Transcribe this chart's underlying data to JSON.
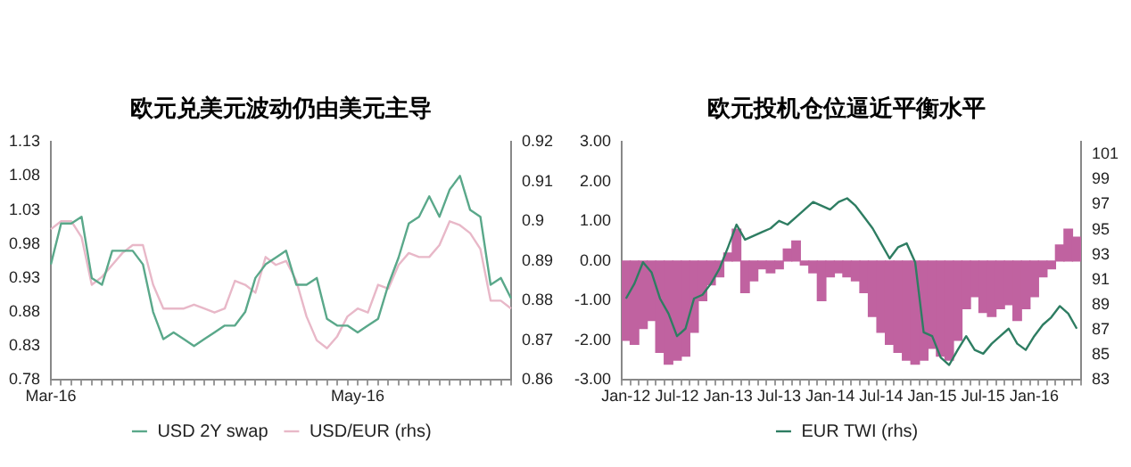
{
  "chart_data": [
    {
      "type": "line",
      "title": "欧元兑美元波动仍由美元主导",
      "categories": [
        "Mar-16",
        null,
        null,
        null,
        null,
        null,
        null,
        null,
        null,
        null,
        null,
        null,
        null,
        null,
        null,
        null,
        null,
        null,
        null,
        null,
        null,
        null,
        null,
        null,
        null,
        null,
        null,
        null,
        null,
        null,
        "May-16",
        null,
        null,
        null,
        null,
        null,
        null,
        null,
        null,
        null,
        null,
        null,
        null,
        null,
        null,
        null
      ],
      "series": [
        {
          "name": "USD 2Y swap",
          "color": "#5aa88a",
          "values": [
            0.95,
            1.01,
            1.01,
            1.02,
            0.93,
            0.92,
            0.97,
            0.97,
            0.97,
            0.95,
            0.88,
            0.84,
            0.85,
            0.84,
            0.83,
            0.84,
            0.85,
            0.86,
            0.86,
            0.88,
            0.93,
            0.95,
            0.96,
            0.97,
            0.92,
            0.92,
            0.93,
            0.87,
            0.86,
            0.86,
            0.85,
            0.86,
            0.87,
            0.92,
            0.96,
            1.01,
            1.02,
            1.05,
            1.02,
            1.06,
            1.08,
            1.03,
            1.02,
            0.92,
            0.93,
            0.9
          ]
        },
        {
          "name": "USD/EUR (rhs)",
          "color": "#e8b8c8",
          "axis": "y2",
          "values": [
            0.898,
            0.9,
            0.9,
            0.896,
            0.884,
            0.886,
            0.889,
            0.892,
            0.894,
            0.894,
            0.884,
            0.878,
            0.878,
            0.878,
            0.879,
            0.878,
            0.877,
            0.878,
            0.885,
            0.884,
            0.882,
            0.891,
            0.889,
            0.89,
            0.885,
            0.876,
            0.87,
            0.868,
            0.871,
            0.876,
            0.878,
            0.877,
            0.884,
            0.883,
            0.889,
            0.892,
            0.891,
            0.891,
            0.894,
            0.9,
            0.899,
            0.897,
            0.893,
            0.88,
            0.88,
            0.878
          ]
        }
      ],
      "ylim": [
        0.78,
        1.13
      ],
      "yticks": [
        0.78,
        0.83,
        0.88,
        0.93,
        0.98,
        1.03,
        1.08,
        1.13
      ],
      "y2lim": [
        0.86,
        0.92
      ],
      "y2ticks": [
        0.86,
        0.87,
        0.88,
        0.89,
        {
          "value": 0.9,
          "label": "0.9"
        },
        0.91,
        0.92
      ],
      "marker": "none",
      "legend": "bottom"
    },
    {
      "type": "bar",
      "title": "欧元投机仓位逼近平衡水平",
      "categories": [
        "Jan-12",
        null,
        null,
        null,
        null,
        null,
        "Jul-12",
        null,
        null,
        null,
        null,
        null,
        "Jan-13",
        null,
        null,
        null,
        null,
        null,
        "Jul-13",
        null,
        null,
        null,
        null,
        null,
        "Jan-14",
        null,
        null,
        null,
        null,
        null,
        "Jul-14",
        null,
        null,
        null,
        null,
        null,
        "Jan-15",
        null,
        null,
        null,
        null,
        null,
        "Jul-15",
        null,
        null,
        null,
        null,
        null,
        "Jan-16",
        null,
        null,
        null,
        null,
        null
      ],
      "series": [
        {
          "color": "#c062a0",
          "values": [
            -2.0,
            -2.1,
            -1.7,
            -1.5,
            -2.3,
            -2.6,
            -2.5,
            -2.4,
            -1.8,
            -1.0,
            -0.6,
            -0.4,
            0.2,
            0.8,
            -0.8,
            -0.5,
            -0.2,
            -0.3,
            -0.2,
            0.3,
            0.5,
            -0.1,
            -0.3,
            -1.0,
            -0.4,
            -0.3,
            -0.4,
            -0.5,
            -0.8,
            -1.4,
            -1.8,
            -2.1,
            -2.3,
            -2.5,
            -2.6,
            -2.5,
            -2.2,
            -2.4,
            -2.5,
            -2.0,
            -1.2,
            -0.9,
            -1.3,
            -1.4,
            -1.2,
            -1.1,
            -1.5,
            -1.2,
            -0.9,
            -0.4,
            -0.2,
            0.4,
            0.8,
            0.6
          ]
        },
        {
          "name": "EUR TWI (rhs)",
          "type": "line",
          "color": "#2e7d62",
          "axis": "y2",
          "values": [
            89.5,
            90.7,
            92.4,
            91.6,
            89.5,
            88.3,
            86.5,
            87.1,
            89.5,
            89.8,
            90.7,
            91.9,
            93.6,
            95.4,
            94.2,
            94.5,
            94.8,
            95.1,
            95.7,
            95.4,
            96.0,
            96.6,
            97.2,
            96.9,
            96.6,
            97.2,
            97.5,
            96.9,
            96.0,
            95.1,
            93.9,
            92.7,
            93.6,
            93.9,
            92.4,
            86.8,
            86.5,
            84.8,
            84.2,
            85.4,
            86.5,
            85.4,
            85.1,
            85.9,
            86.5,
            87.1,
            85.9,
            85.4,
            86.5,
            87.4,
            88.0,
            88.9,
            88.3,
            87.1
          ]
        }
      ],
      "ylim": [
        -3,
        3
      ],
      "yticks": [
        {
          "value": -3,
          "label": "-3.00"
        },
        {
          "value": -2,
          "label": "-2.00"
        },
        {
          "value": -1,
          "label": "-1.00"
        },
        {
          "value": 0,
          "label": "0.00"
        },
        {
          "value": 1,
          "label": "1.00"
        },
        {
          "value": 2,
          "label": "2.00"
        },
        {
          "value": 3,
          "label": "3.00"
        }
      ],
      "y2lim": [
        83,
        102
      ],
      "y2ticks": [
        83,
        85,
        87,
        89,
        91,
        93,
        95,
        97,
        99,
        101
      ],
      "marker": "none",
      "legend": "bottom"
    }
  ]
}
